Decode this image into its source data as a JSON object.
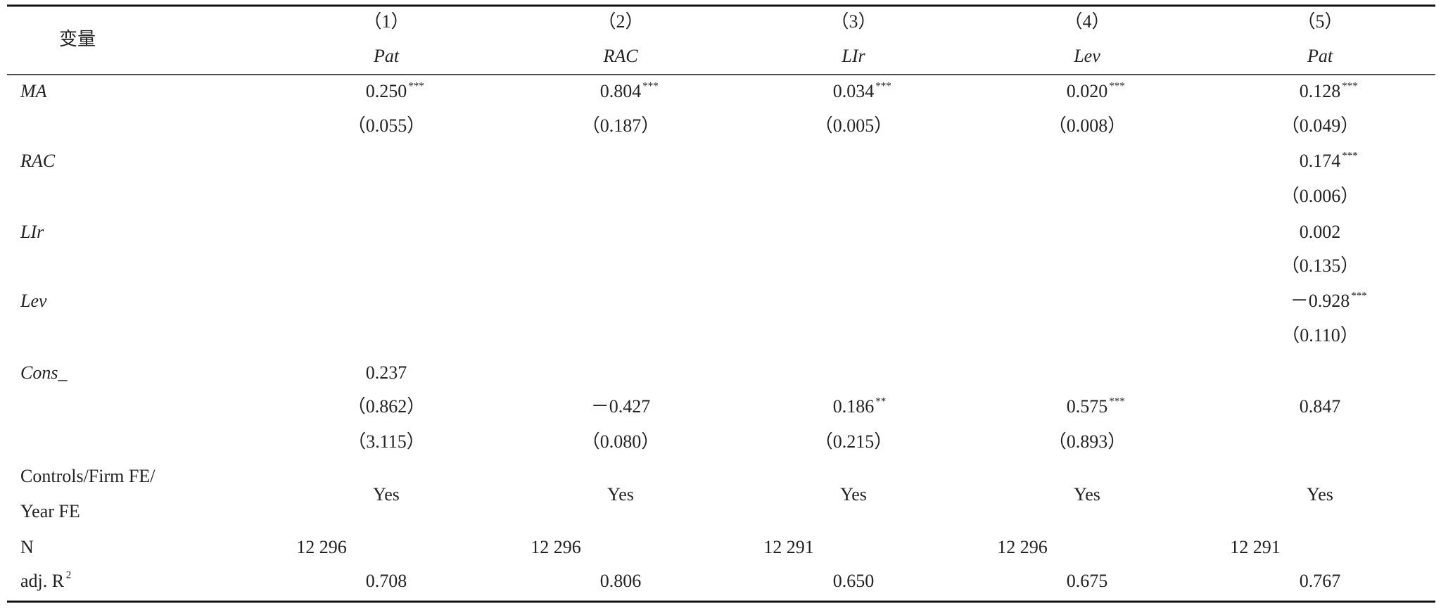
{
  "header": {
    "label": "变量",
    "numbers": [
      "（1）",
      "（2）",
      "（3）",
      "（4）",
      "（5）"
    ],
    "dependents": [
      "Pat",
      "RAC",
      "LIr",
      "Lev",
      "Pat"
    ]
  },
  "rows": [
    {
      "label": "MA",
      "italic": true,
      "cells": [
        {
          "text": "0.250",
          "stars": "***"
        },
        {
          "text": "0.804",
          "stars": "***"
        },
        {
          "text": "0.034",
          "stars": "***"
        },
        {
          "text": "0.020",
          "stars": "***"
        },
        {
          "text": "0.128",
          "stars": "***"
        }
      ]
    },
    {
      "cells": [
        {
          "text": "（0.055）"
        },
        {
          "text": "（0.187）"
        },
        {
          "text": "（0.005）"
        },
        {
          "text": "（0.008）"
        },
        {
          "text": "（0.049）"
        }
      ]
    },
    {
      "label": "RAC",
      "italic": true,
      "cells": [
        null,
        null,
        null,
        null,
        {
          "text": "0.174",
          "stars": "***"
        }
      ]
    },
    {
      "cells": [
        null,
        null,
        null,
        null,
        {
          "text": "（0.006）"
        }
      ]
    },
    {
      "label": "LIr",
      "italic": true,
      "cells": [
        null,
        null,
        null,
        null,
        {
          "text": "0.002"
        }
      ]
    },
    {
      "cells": [
        null,
        null,
        null,
        null,
        {
          "text": "（0.135）"
        }
      ]
    },
    {
      "label": "Lev",
      "italic": true,
      "cells": [
        null,
        null,
        null,
        null,
        {
          "text": "－0.928",
          "stars": "***"
        }
      ]
    },
    {
      "cells": [
        null,
        null,
        null,
        null,
        {
          "text": "（0.110）"
        }
      ]
    },
    {
      "label": "Cons_",
      "italic": true,
      "cells": [
        {
          "text": "0.237"
        },
        null,
        null,
        null,
        null
      ]
    },
    {
      "cells": [
        {
          "text": "（0.862）"
        },
        {
          "text": "－0.427"
        },
        {
          "text": "0.186",
          "stars": "**"
        },
        {
          "text": "0.575",
          "stars": "***"
        },
        {
          "text": "0.847"
        }
      ]
    },
    {
      "cells": [
        {
          "text": "（3.115）"
        },
        {
          "text": "（0.080）"
        },
        {
          "text": "（0.215）"
        },
        {
          "text": "（0.893）"
        },
        null
      ]
    },
    {
      "label": [
        "Controls/Firm FE/",
        "Year FE"
      ],
      "cells": [
        {
          "text": "Yes"
        },
        {
          "text": "Yes"
        },
        {
          "text": "Yes"
        },
        {
          "text": "Yes"
        },
        {
          "text": "Yes"
        }
      ]
    },
    {
      "label": "N",
      "cells": [
        {
          "text": "12 296"
        },
        {
          "text": "12 296"
        },
        {
          "text": "12 291"
        },
        {
          "text": "12 296"
        },
        {
          "text": "12 291"
        }
      ]
    },
    {
      "label": "adj. R",
      "label_sup": "2",
      "cells": [
        {
          "text": "0.708"
        },
        {
          "text": "0.806"
        },
        {
          "text": "0.650"
        },
        {
          "text": "0.675"
        },
        {
          "text": "0.767"
        }
      ]
    }
  ]
}
